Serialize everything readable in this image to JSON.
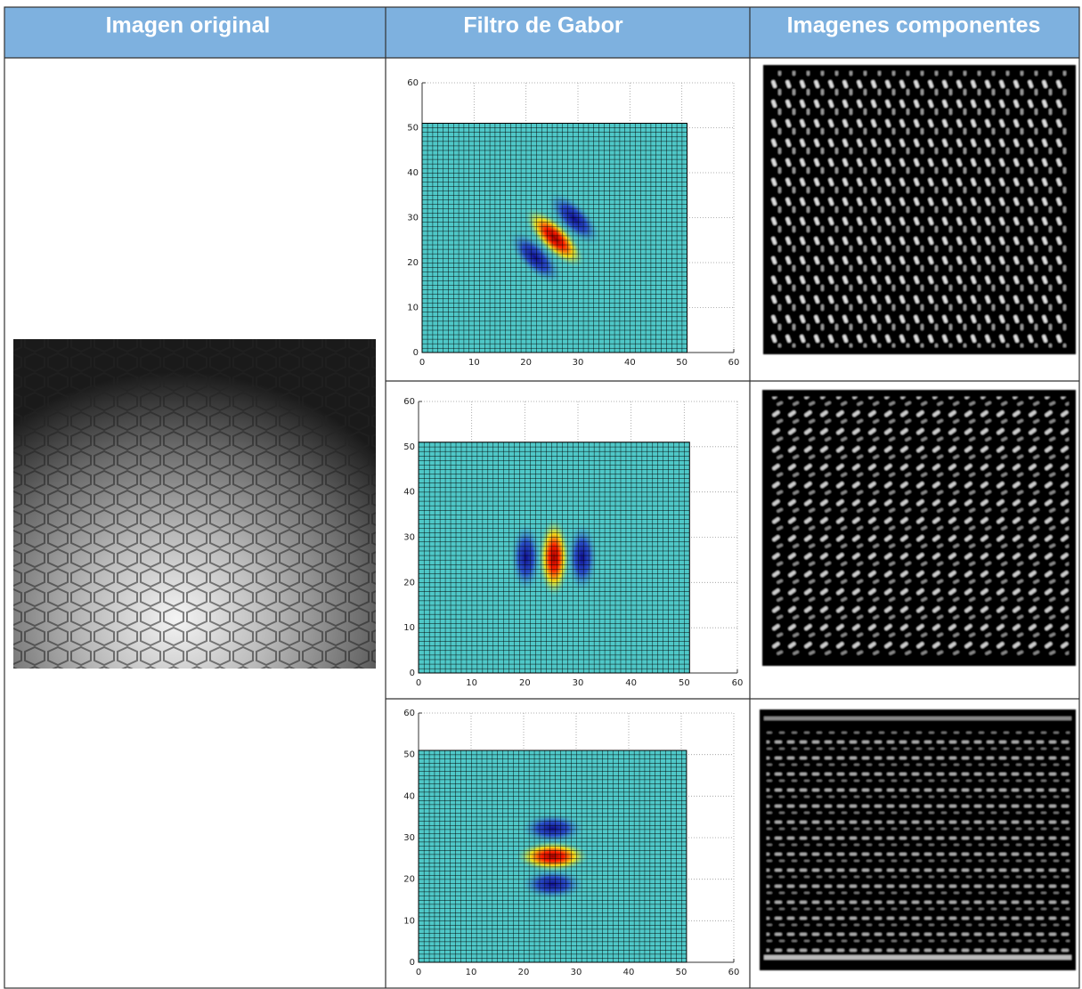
{
  "table": {
    "header": [
      "Imagen original",
      "Filtro de Gabor",
      "Imagenes componentes"
    ]
  },
  "filters": [
    {
      "xlim": [
        0,
        60
      ],
      "ylim": [
        0,
        60
      ],
      "xticks": [
        0,
        10,
        20,
        30,
        40,
        50,
        60
      ],
      "yticks": [
        0,
        10,
        20,
        30,
        40,
        50,
        60
      ],
      "mesh_max": 51
    },
    {
      "xlim": [
        0,
        60
      ],
      "ylim": [
        0,
        60
      ],
      "xticks": [
        0,
        10,
        20,
        30,
        40,
        50,
        60
      ],
      "yticks": [
        0,
        10,
        20,
        30,
        40,
        50,
        60
      ],
      "mesh_max": 51
    },
    {
      "xlim": [
        0,
        60
      ],
      "ylim": [
        0,
        60
      ],
      "xticks": [
        0,
        10,
        20,
        30,
        40,
        50,
        60
      ],
      "yticks": [
        0,
        10,
        20,
        30,
        40,
        50,
        60
      ],
      "mesh_max": 51
    }
  ]
}
